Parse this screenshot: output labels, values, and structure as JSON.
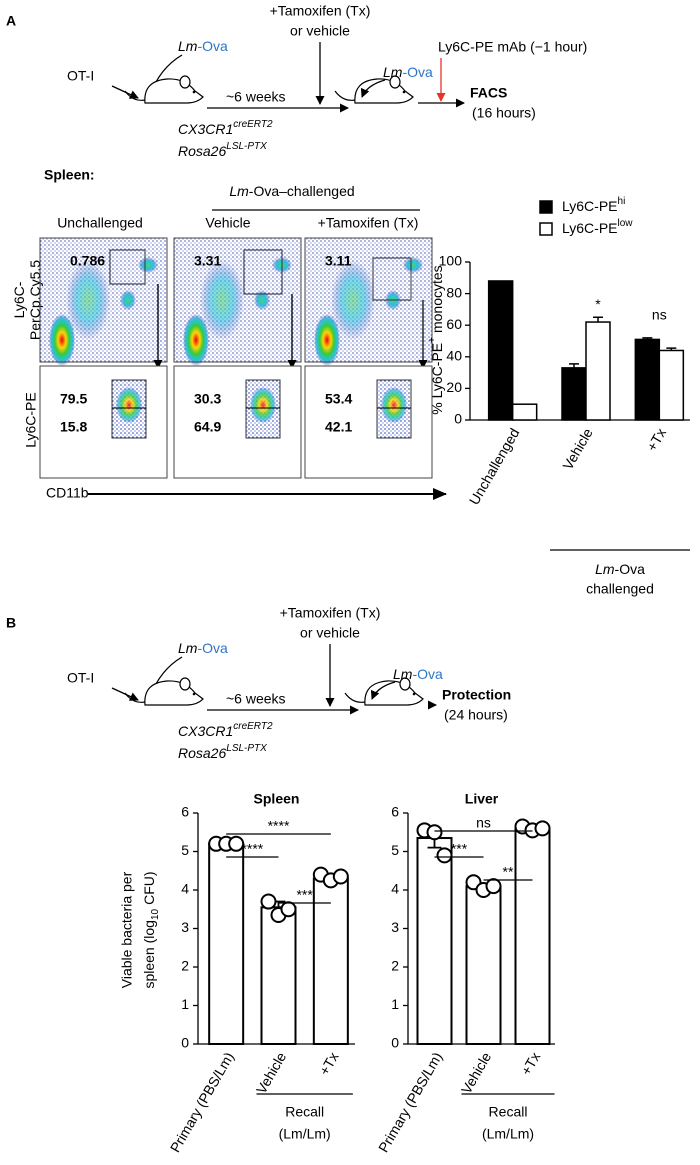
{
  "panel_a": {
    "letter": "A",
    "schematic": {
      "ot1": "OT-I",
      "lm": "Lm",
      "ova": "-Ova",
      "weeks": "~6 weeks",
      "tx_line1": "+Tamoxifen (Tx)",
      "tx_line2": "or vehicle",
      "mab": "Ly6C-PE mAb (−1 hour)",
      "readout": "FACS",
      "readout_time": "(16 hours)",
      "strain1": "CX3CR1",
      "strain1_sup": "creERT2",
      "strain2": "Rosa26",
      "strain2_sup": "LSL-PTX"
    },
    "flow": {
      "tissue": "Spleen:",
      "challenge_italic": "Lm",
      "challenge_rest": "-Ova–challenged",
      "conditions": [
        "Unchallenged",
        "Vehicle",
        "+Tamoxifen (Tx)"
      ],
      "y_label_top": [
        "Ly6C-",
        "PerCp.Cy5.5"
      ],
      "y_label_bottom": "Ly6C-PE",
      "x_label": "CD11b",
      "gates_top": [
        0.786,
        3.31,
        3.11
      ],
      "gates_bottom_hi": [
        79.5,
        30.3,
        53.4
      ],
      "gates_bottom_low": [
        15.8,
        64.9,
        42.1
      ]
    }
  },
  "panel_b": {
    "letter": "B",
    "schematic": {
      "ot1": "OT-I",
      "lm": "Lm",
      "ova": "-Ova",
      "weeks": "~6 weeks",
      "tx_line1": "+Tamoxifen (Tx)",
      "tx_line2": "or vehicle",
      "readout": "Protection",
      "readout_time": "(24 hours)",
      "strain1": "CX3CR1",
      "strain1_sup": "creERT2",
      "strain2": "Rosa26",
      "strain2_sup": "LSL-PTX"
    }
  },
  "chart_data": [
    {
      "type": "bar",
      "ylabel": "% Ly6C-PE",
      "ylabel_sup": "+",
      "ylabel_end": "monocytes",
      "categories": [
        "Unchallenged",
        "Vehicle",
        "+Tx"
      ],
      "series": [
        {
          "name": "Ly6C-PE",
          "name_sup": "hi",
          "color": "#000000",
          "values": [
            88,
            33,
            51
          ],
          "errors": [
            null,
            2.5,
            1
          ]
        },
        {
          "name": "Ly6C-PE",
          "name_sup": "low",
          "color": "#ffffff",
          "values": [
            10,
            62,
            44
          ],
          "errors": [
            null,
            3,
            1.5
          ]
        }
      ],
      "ylim": [
        0,
        100
      ],
      "yticks": [
        0,
        20,
        40,
        60,
        80,
        100
      ],
      "annotations": [
        {
          "text": "*",
          "category": 1,
          "series": 1
        },
        {
          "text": "ns",
          "category": 2
        }
      ],
      "group_label_italic": "Lm",
      "group_label_rest": "-Ova",
      "group_label_line2": "challenged"
    },
    {
      "type": "bar",
      "title": "Spleen",
      "ylabel_line1": "Viable bacteria per",
      "ylabel_line2": "spleen (log",
      "ylabel_sub": "10",
      "ylabel_end": "CFU)",
      "categories": [
        "Primary (PBS/Lm)",
        "Vehicle",
        "+Tx"
      ],
      "values": [
        5.2,
        3.55,
        4.3
      ],
      "errors": [
        0.03,
        0.15,
        0.08
      ],
      "points": [
        [
          5.2,
          5.2,
          5.2
        ],
        [
          3.7,
          3.35,
          3.5
        ],
        [
          4.4,
          4.25,
          4.35
        ]
      ],
      "ylim": [
        0,
        6
      ],
      "yticks": [
        0,
        1,
        2,
        3,
        4,
        5,
        6
      ],
      "comparisons": [
        {
          "label": "****",
          "between": [
            0,
            2
          ]
        },
        {
          "label": "****",
          "between": [
            0,
            1
          ]
        },
        {
          "label": "***",
          "between": [
            1,
            2
          ]
        }
      ],
      "group_label": "Recall",
      "group_label_line2": "(Lm/Lm)"
    },
    {
      "type": "bar",
      "title": "Liver",
      "categories": [
        "Primary (PBS/Lm)",
        "Vehicle",
        "+Tx"
      ],
      "values": [
        5.35,
        4.1,
        5.6
      ],
      "errors": [
        0.25,
        0.07,
        0.05
      ],
      "points": [
        [
          5.55,
          5.5,
          4.9
        ],
        [
          4.2,
          4.0,
          4.1
        ],
        [
          5.65,
          5.55,
          5.6
        ]
      ],
      "ylim": [
        0,
        6
      ],
      "yticks": [
        0,
        1,
        2,
        3,
        4,
        5,
        6
      ],
      "comparisons": [
        {
          "label": "ns",
          "between": [
            0,
            2
          ]
        },
        {
          "label": "***",
          "between": [
            0,
            1
          ]
        },
        {
          "label": "**",
          "between": [
            1,
            2
          ]
        }
      ],
      "group_label": "Recall",
      "group_label_line2": "(Lm/Lm)"
    }
  ]
}
